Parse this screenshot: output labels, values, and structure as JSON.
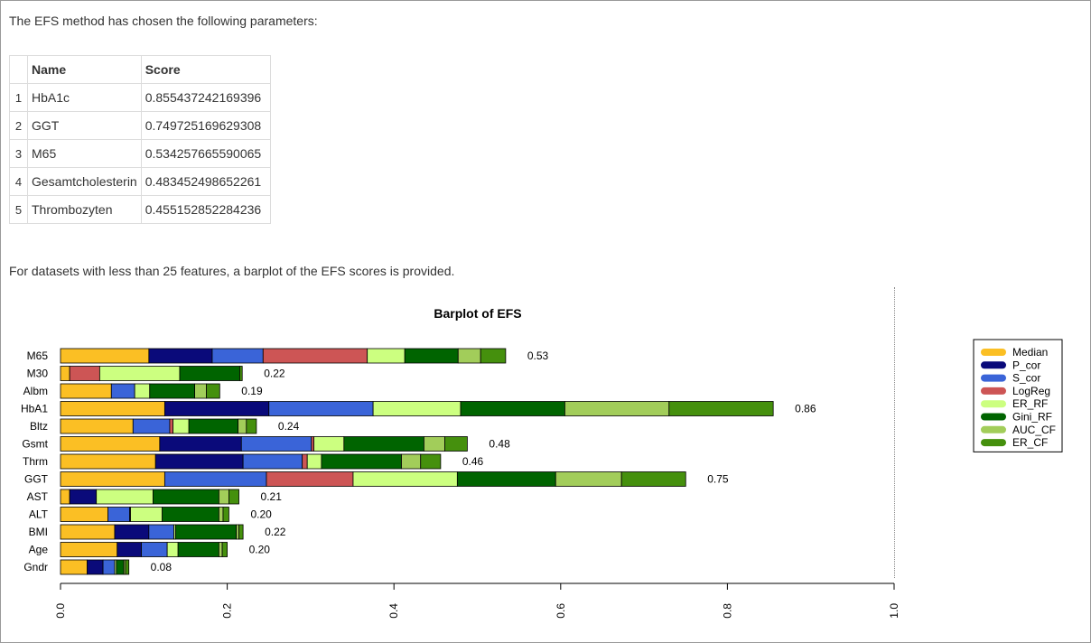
{
  "intro_text": "The EFS method has chosen the following parameters:",
  "table": {
    "headers": [
      "",
      "Name",
      "Score"
    ],
    "rows": [
      {
        "index": "1",
        "name": "HbA1c",
        "score": "0.855437242169396"
      },
      {
        "index": "2",
        "name": "GGT",
        "score": "0.749725169629308"
      },
      {
        "index": "3",
        "name": "M65",
        "score": "0.534257665590065"
      },
      {
        "index": "4",
        "name": "Gesamtcholesterin",
        "score": "0.483452498652261"
      },
      {
        "index": "5",
        "name": "Thrombozyten",
        "score": "0.455152852284236"
      }
    ]
  },
  "barplot_note": "For datasets with less than 25 features, a barplot of the EFS scores is provided.",
  "chart_data": {
    "type": "bar",
    "orientation": "horizontal",
    "stacked": true,
    "title": "Barplot of EFS",
    "xlabel": "",
    "ylabel": "",
    "xlim": [
      0,
      1.0
    ],
    "x_ticks": [
      "0.0",
      "0.2",
      "0.4",
      "0.6",
      "0.8",
      "1.0"
    ],
    "legend_position": "right",
    "categories": [
      "M65",
      "M30",
      "Albm",
      "HbA1",
      "Bltz",
      "Gsmt",
      "Thrm",
      "GGT",
      "AST",
      "ALT",
      "BMI",
      "Age",
      "Gndr"
    ],
    "totals": [
      "0.53",
      "0.22",
      "0.19",
      "0.86",
      "0.24",
      "0.48",
      "0.46",
      "0.75",
      "0.21",
      "0.20",
      "0.22",
      "0.20",
      "0.08"
    ],
    "series": [
      {
        "name": "Median",
        "color": "#fbbf24",
        "values": [
          0.106,
          0.011,
          0.061,
          0.125,
          0.087,
          0.119,
          0.114,
          0.125,
          0.011,
          0.057,
          0.065,
          0.068,
          0.032
        ]
      },
      {
        "name": "P_cor",
        "color": "#0a0a7a",
        "values": [
          0.076,
          0,
          0,
          0.125,
          0,
          0.098,
          0.105,
          0,
          0.032,
          0,
          0.041,
          0.029,
          0.019
        ]
      },
      {
        "name": "S_cor",
        "color": "#3a64d8",
        "values": [
          0.061,
          0,
          0.028,
          0.125,
          0.044,
          0.084,
          0.071,
          0.122,
          0,
          0.026,
          0.03,
          0.031,
          0.014
        ]
      },
      {
        "name": "LogReg",
        "color": "#cd5555",
        "values": [
          0.125,
          0.036,
          0,
          0,
          0.004,
          0.003,
          0.006,
          0.104,
          0,
          0.001,
          0,
          0,
          0
        ]
      },
      {
        "name": "ER_RF",
        "color": "#ccff80",
        "values": [
          0.045,
          0.096,
          0.018,
          0.105,
          0.019,
          0.036,
          0.017,
          0.125,
          0.068,
          0.038,
          0.002,
          0.013,
          0.002
        ]
      },
      {
        "name": "Gini_RF",
        "color": "#006400",
        "values": [
          0.064,
          0.072,
          0.054,
          0.125,
          0.059,
          0.096,
          0.096,
          0.118,
          0.079,
          0.068,
          0.073,
          0.049,
          0.009
        ]
      },
      {
        "name": "AUC_CF",
        "color": "#a2cd5a",
        "values": [
          0.027,
          0,
          0.014,
          0.125,
          0.01,
          0.025,
          0.023,
          0.079,
          0.012,
          0.005,
          0.003,
          0.004,
          0.002
        ]
      },
      {
        "name": "ER_CF",
        "color": "#45900d",
        "values": [
          0.03,
          0.003,
          0.016,
          0.125,
          0.012,
          0.027,
          0.024,
          0.077,
          0.012,
          0.007,
          0.005,
          0.006,
          0.004
        ]
      }
    ]
  }
}
